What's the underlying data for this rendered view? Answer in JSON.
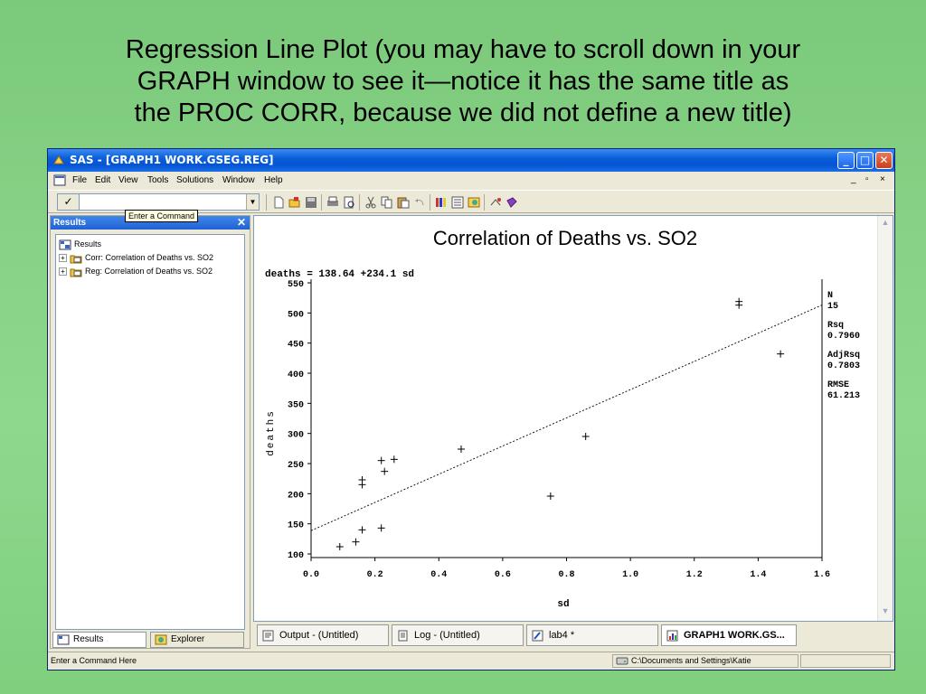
{
  "slide": {
    "title_lines": [
      "Regression Line Plot (you may have to scroll down in your",
      "GRAPH window to see it—notice it has the same title as",
      "the PROC CORR, because we did not define a new title)"
    ]
  },
  "window": {
    "title": "SAS - [GRAPH1  WORK.GSEG.REG]",
    "menu": [
      "File",
      "Edit",
      "View",
      "Tools",
      "Solutions",
      "Window",
      "Help"
    ],
    "mdi_controls": [
      "_",
      "̅",
      "×"
    ],
    "command_tooltip": "Enter a Command",
    "command_value": ""
  },
  "results": {
    "header": "Results",
    "root": "Results",
    "items": [
      "Corr:  Correlation of Deaths vs. SO2",
      "Reg:  Correlation of Deaths vs. SO2"
    ],
    "tabs": [
      "Results",
      "Explorer"
    ]
  },
  "graph": {
    "title": "Correlation of Deaths vs. SO2",
    "equation": "deaths = 138.64 +234.1 sd",
    "stats": [
      {
        "label": "N",
        "value": "15"
      },
      {
        "label": "Rsq",
        "value": "0.7960"
      },
      {
        "label": "AdjRsq",
        "value": "0.7803"
      },
      {
        "label": "RMSE",
        "value": "61.213"
      }
    ]
  },
  "chart_data": {
    "type": "scatter",
    "title": "Correlation of Deaths vs. SO2",
    "xlabel": "sd",
    "ylabel": "deaths",
    "xlim": [
      0.0,
      1.6
    ],
    "ylim": [
      100,
      550
    ],
    "x_ticks": [
      "0.0",
      "0.2",
      "0.4",
      "0.6",
      "0.8",
      "1.0",
      "1.2",
      "1.4",
      "1.6"
    ],
    "y_ticks": [
      "100",
      "150",
      "200",
      "250",
      "300",
      "350",
      "400",
      "450",
      "500",
      "550"
    ],
    "points": [
      {
        "x": 0.09,
        "y": 112
      },
      {
        "x": 0.14,
        "y": 120
      },
      {
        "x": 0.16,
        "y": 140
      },
      {
        "x": 0.16,
        "y": 215
      },
      {
        "x": 0.16,
        "y": 223
      },
      {
        "x": 0.22,
        "y": 143
      },
      {
        "x": 0.22,
        "y": 255
      },
      {
        "x": 0.23,
        "y": 237
      },
      {
        "x": 0.26,
        "y": 257
      },
      {
        "x": 0.47,
        "y": 274
      },
      {
        "x": 0.75,
        "y": 196
      },
      {
        "x": 0.86,
        "y": 295
      },
      {
        "x": 1.34,
        "y": 513
      },
      {
        "x": 1.34,
        "y": 519
      },
      {
        "x": 1.47,
        "y": 432
      }
    ],
    "regression": {
      "intercept": 138.64,
      "slope": 234.1,
      "style": "dashed"
    }
  },
  "tasks": [
    "Output - (Untitled)",
    "Log - (Untitled)",
    "lab4 *",
    "GRAPH1  WORK.GS..."
  ],
  "status": {
    "message": "Enter a Command Here",
    "path": "C:\\Documents and Settings\\Katie"
  }
}
